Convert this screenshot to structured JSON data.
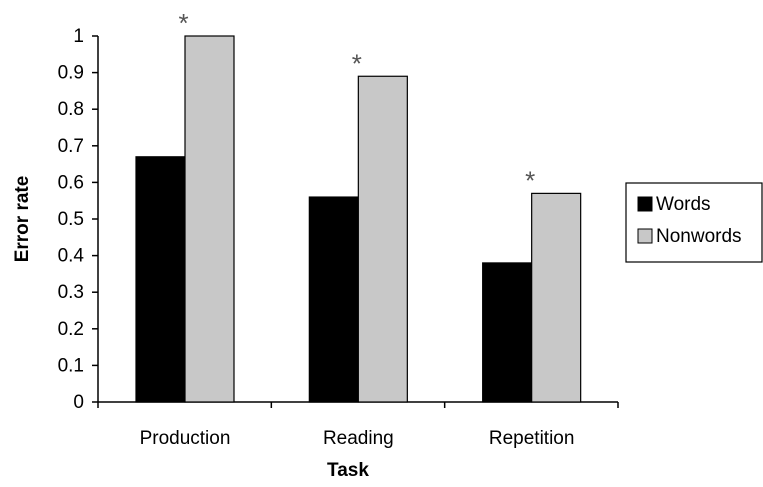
{
  "chart_data": {
    "type": "bar",
    "categories": [
      "Production",
      "Reading",
      "Repetition"
    ],
    "series": [
      {
        "name": "Words",
        "values": [
          0.67,
          0.56,
          0.38
        ],
        "color": "#000000"
      },
      {
        "name": "Nonwords",
        "values": [
          1.0,
          0.89,
          0.57
        ],
        "color": "#c8c8c8"
      }
    ],
    "xlabel": "Task",
    "ylabel": "Error rate",
    "ylim": [
      0,
      1
    ],
    "yticks": [
      "0",
      "0.1",
      "0.2",
      "0.3",
      "0.4",
      "0.5",
      "0.6",
      "0.7",
      "0.8",
      "0.9",
      "1"
    ],
    "annotations": [
      {
        "category": "Production",
        "text": "*"
      },
      {
        "category": "Reading",
        "text": "*"
      },
      {
        "category": "Repetition",
        "text": "*"
      }
    ],
    "grid": false,
    "legend": "right"
  }
}
